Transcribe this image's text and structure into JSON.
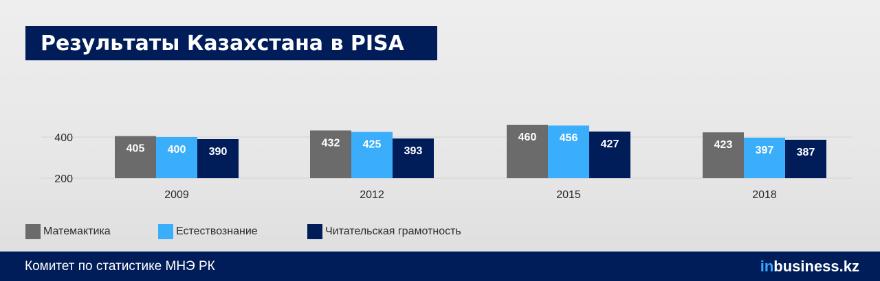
{
  "title": "Результаты Казахстана в PISA",
  "chart_data": {
    "type": "bar",
    "title": "Результаты Казахстана в PISA",
    "categories": [
      "2009",
      "2012",
      "2015",
      "2018"
    ],
    "series": [
      {
        "name": "Матемактика",
        "color": "#6b6b6b",
        "values": [
          405,
          432,
          460,
          423
        ]
      },
      {
        "name": "Естествознание",
        "color": "#3aadfb",
        "values": [
          400,
          425,
          456,
          397
        ]
      },
      {
        "name": "Читательская грамотность",
        "color": "#001d5a",
        "values": [
          390,
          393,
          427,
          387
        ]
      }
    ],
    "yticks": [
      200,
      400
    ],
    "ylim": [
      200,
      470
    ],
    "grid": true,
    "legend_position": "bottom-left"
  },
  "legend": [
    {
      "label": "Матемактика",
      "color": "#6b6b6b"
    },
    {
      "label": "Естествознание",
      "color": "#3aadfb"
    },
    {
      "label": "Читательская грамотность",
      "color": "#001d5a"
    }
  ],
  "footer": {
    "source": "Комитет по статистике МНЭ РК",
    "brand_prefix": "in",
    "brand_name": "business.kz"
  }
}
